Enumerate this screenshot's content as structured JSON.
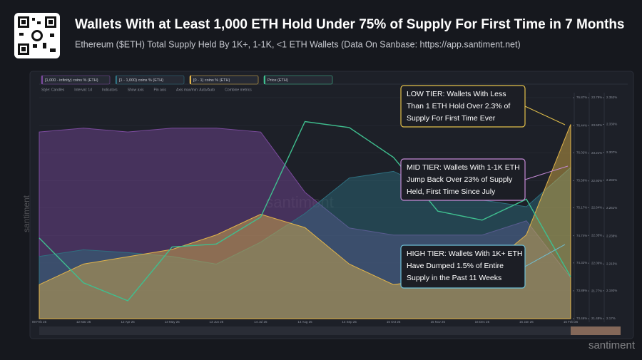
{
  "chart_data": {
    "type": "area",
    "title": "Wallets With at Least 1,000 ETH Hold Under 75% of Supply For First Time in 7 Months",
    "subtitle": "Ethereum ($ETH) Total Supply Held By 1K+, 1-1K, <1 ETH Wallets (Data On Sanbase: https://app.santiment.net)",
    "toolbar": [
      "Style: Candles",
      "Interval: 1d",
      "Indicators",
      "Show axis",
      "Pin axis",
      "Axis max/min: Auto/Auto",
      "Combine metrics"
    ],
    "watermark": "santiment",
    "x": [
      "09 Feb 25",
      "12 Mar 25",
      "12 Apr 25",
      "13 May 25",
      "13 Jun 25",
      "14 Jul 25",
      "14 Aug 25",
      "14 Sep 25",
      "15 Oct 25",
      "15 Nov 25",
      "16 Dec 25",
      "16 Jan 26",
      "16 Feb 26"
    ],
    "series": [
      {
        "name": "[1,000 - infinity) coins % (ETH)",
        "color": "#7a4a9c",
        "axis": "y",
        "values": [
          76.34,
          76.4,
          76.34,
          76.4,
          76.4,
          76.34,
          75.41,
          74.86,
          74.75,
          74.75,
          74.75,
          74.97,
          74.09
        ]
      },
      {
        "name": "[1 - 1,000) coins % (ETH)",
        "color": "#2f7080",
        "axis": "y2",
        "values": [
          22.13,
          22.2,
          22.17,
          22.13,
          22.05,
          22.28,
          22.58,
          22.95,
          23.02,
          22.8,
          22.72,
          22.65,
          23.06
        ]
      },
      {
        "name": "[0 - 1) coins % (ETH)",
        "color": "#e3b54a",
        "axis": "y3",
        "values": [
          2.198,
          2.215,
          2.221,
          2.227,
          2.239,
          2.256,
          2.245,
          2.215,
          2.198,
          2.203,
          2.209,
          2.239,
          2.33
        ]
      },
      {
        "name": "Price (ETH)",
        "color": "#3fbf8f",
        "axis": "y4",
        "values": [
          2650,
          1900,
          1600,
          2500,
          2550,
          3000,
          4600,
          4500,
          4000,
          3100,
          2950,
          3300,
          2000
        ]
      }
    ],
    "ylim": [
      73.46,
      76.87
    ],
    "yticks": [
      {
        "value": 76.87,
        "label": "76.87%"
      },
      {
        "value": 76.44,
        "label": "76.44%"
      },
      {
        "value": 76.02,
        "label": "76.02%"
      },
      {
        "value": 75.59,
        "label": "75.59%"
      },
      {
        "value": 75.17,
        "label": "75.17%"
      },
      {
        "value": 74.74,
        "label": "74.74%"
      },
      {
        "value": 74.32,
        "label": "74.32%"
      },
      {
        "value": 73.89,
        "label": "73.89%"
      },
      {
        "value": 73.46,
        "label": "73.46%"
      }
    ],
    "y2lim": [
      21.48,
      23.79
    ],
    "y2ticks": [
      {
        "value": 23.79,
        "label": "23.79%"
      },
      {
        "value": 23.5,
        "label": "23.50%"
      },
      {
        "value": 23.21,
        "label": "23.21%"
      },
      {
        "value": 22.92,
        "label": "22.92%"
      },
      {
        "value": 22.64,
        "label": "22.64%"
      },
      {
        "value": 22.35,
        "label": "22.35%"
      },
      {
        "value": 22.06,
        "label": "22.06%"
      },
      {
        "value": 21.77,
        "label": "21.77%"
      },
      {
        "value": 21.48,
        "label": "21.48%"
      }
    ],
    "y3lim": [
      2.17,
      2.352
    ],
    "y3ticks": [
      {
        "value": 2.352,
        "label": "2.352%"
      },
      {
        "value": 2.33,
        "label": "2.330%"
      },
      {
        "value": 2.307,
        "label": "2.307%"
      },
      {
        "value": 2.284,
        "label": "2.284%"
      },
      {
        "value": 2.261,
        "label": "2.261%"
      },
      {
        "value": 2.238,
        "label": "2.238%"
      },
      {
        "value": 2.215,
        "label": "2.215%"
      },
      {
        "value": 2.193,
        "label": "2.193%"
      },
      {
        "value": 2.17,
        "label": "2.17%"
      }
    ],
    "y4lim": [
      1300,
      5000
    ],
    "annotations": [
      {
        "lines": [
          "LOW TIER: Wallets With Less",
          "Than 1 ETH Hold Over 2.3% of",
          "Supply For First Time Ever"
        ],
        "color": "#e3c04a"
      },
      {
        "lines": [
          "MID TIER: Wallets With 1-1K ETH",
          "Jump Back Over 23% of Supply",
          "Held, First Time Since July"
        ],
        "color": "#c58ad6"
      },
      {
        "lines": [
          "HIGH TIER: Wallets With 1K+ ETH",
          "Have Dumped 1.5% of Entire",
          "Supply in the Past 11 Weeks"
        ],
        "color": "#6fc3d9"
      }
    ]
  }
}
